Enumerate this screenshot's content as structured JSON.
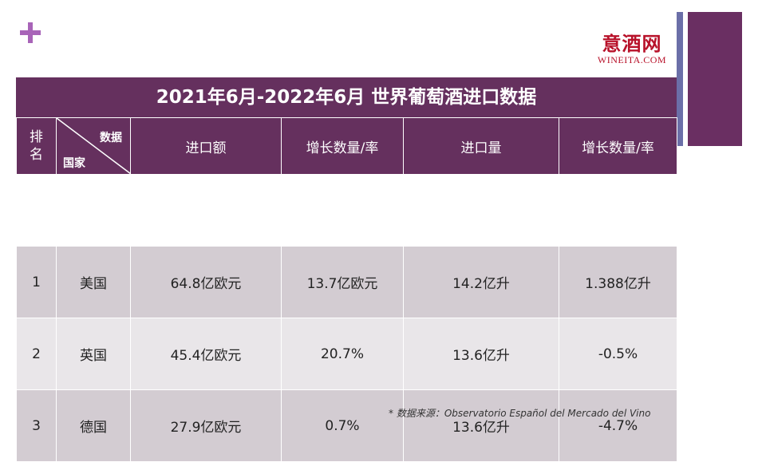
{
  "title": "2021年6月-2022年6月 世界葡萄酒进口数据",
  "logo": {
    "cn": "意酒网",
    "en": "WINEITA.COM"
  },
  "header": {
    "rank": [
      "排",
      "名"
    ],
    "diag_top": "数据",
    "diag_bottom": "国家",
    "columns": [
      "进口额",
      "增长数量/率",
      "进口量",
      "增长数量/率"
    ]
  },
  "rows": [
    {
      "rank": "1",
      "country": "美国",
      "import_value": "64.8亿欧元",
      "value_growth": "13.7亿欧元",
      "import_volume": "14.2亿升",
      "volume_growth": "1.388亿升"
    },
    {
      "rank": "2",
      "country": "英国",
      "import_value": "45.4亿欧元",
      "value_growth": "20.7%",
      "import_volume": "13.6亿升",
      "volume_growth": "-0.5%"
    },
    {
      "rank": "3",
      "country": "德国",
      "import_value": "27.9亿欧元",
      "value_growth": "0.7%",
      "import_volume": "13.6亿升",
      "volume_growth": "-4.7%"
    }
  ],
  "source": "* 数据来源：Observatorio  Español del Mercado del Vino",
  "colors": {
    "header_purple": "#65305e",
    "row_dark": "#d3ccd2",
    "row_light": "#e9e6e9",
    "plus": "#a864b8",
    "logo_red": "#b8122a"
  }
}
